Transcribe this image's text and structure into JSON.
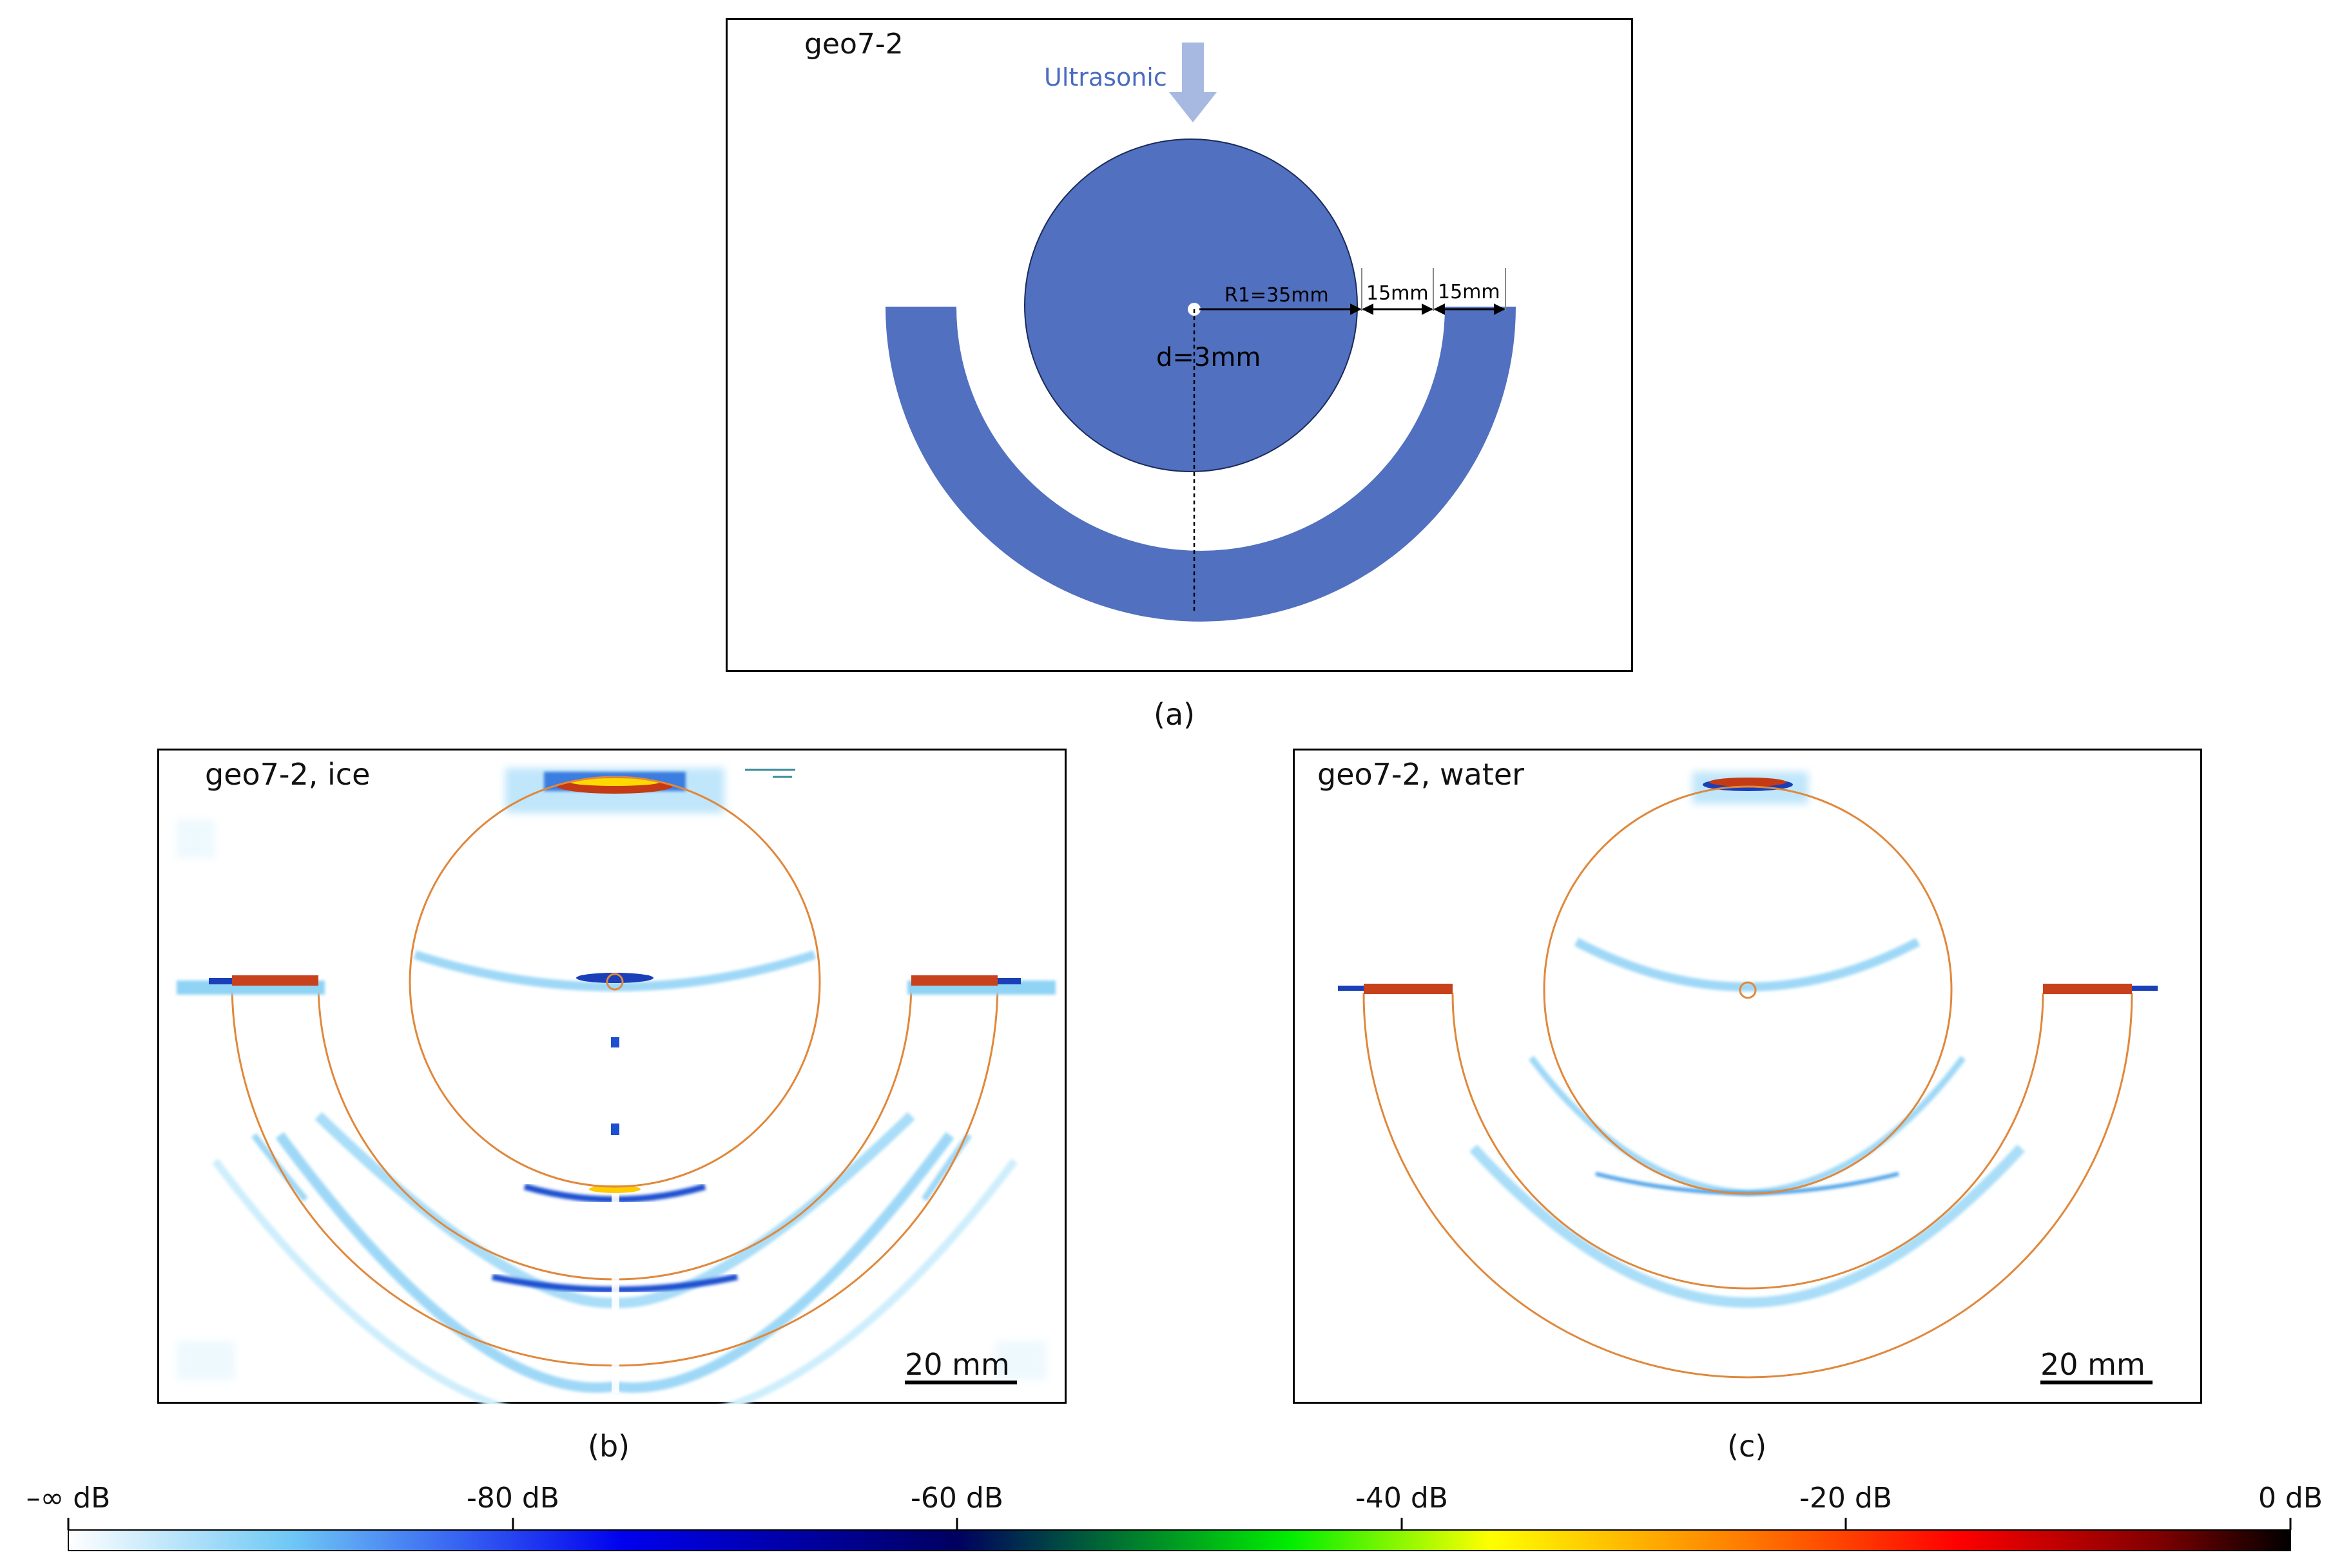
{
  "panel_a": {
    "tag": "geo7-2",
    "ultrasonic_label": "Ultrasonic",
    "r1_label": "R1=35mm",
    "gap1_label": "15mm",
    "gap2_label": "15mm",
    "d_label": "d=3mm",
    "caption": "(a)",
    "colors": {
      "body": "#5170bf",
      "arrow": "#a7b9e1",
      "ultrasonic_text": "#4a6bbf"
    }
  },
  "panel_b": {
    "tag": "geo7-2, ice",
    "scale_label": "20 mm",
    "caption": "(b)"
  },
  "panel_c": {
    "tag": "geo7-2, water",
    "scale_label": "20 mm",
    "caption": "(c)"
  },
  "colorbar": {
    "ticks": [
      "–∞ dB",
      "-80 dB",
      "-60 dB",
      "-40 dB",
      "-20 dB",
      "0 dB"
    ],
    "colors": [
      "#ffffff",
      "#6fc8f5",
      "#0000ee",
      "#000060",
      "#00ee00",
      "#ffff00",
      "#ff8000",
      "#ff0000",
      "#800000",
      "#000000"
    ]
  },
  "accent": {
    "outline": "#e0883c"
  }
}
